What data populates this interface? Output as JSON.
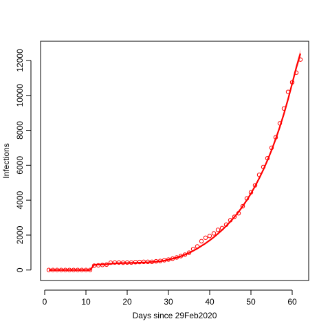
{
  "chart_data": {
    "type": "scatter",
    "title": "",
    "xlabel": "Days since 29Feb2020",
    "ylabel": "Infections",
    "xlim": [
      -1,
      64
    ],
    "ylim": [
      -600,
      13100
    ],
    "x_ticks": [
      0,
      10,
      20,
      30,
      40,
      50,
      60
    ],
    "x_tick_labels": [
      "0",
      "10",
      "20",
      "30",
      "40",
      "50",
      "60"
    ],
    "y_ticks": [
      0,
      2000,
      4000,
      6000,
      8000,
      10000,
      12000
    ],
    "y_tick_labels": [
      "0",
      "2000",
      "4000",
      "6000",
      "8000",
      "10000",
      "12000"
    ],
    "grid": false,
    "colors": {
      "points": "#ff0000",
      "fit": "#ff0000",
      "band": "#ffb0b0"
    },
    "series": [
      {
        "kind": "points",
        "marker": "open-circle",
        "x": [
          1,
          2,
          3,
          4,
          5,
          6,
          7,
          8,
          9,
          10,
          11,
          12,
          13,
          14,
          15,
          16,
          17,
          18,
          19,
          20,
          21,
          22,
          23,
          24,
          25,
          26,
          27,
          28,
          29,
          30,
          31,
          32,
          33,
          34,
          35,
          36,
          37,
          38,
          39,
          40,
          41,
          42,
          43,
          44,
          45,
          46,
          47,
          48,
          49,
          50,
          51,
          52,
          53,
          54,
          55,
          56,
          57,
          58,
          59,
          60,
          61,
          62
        ],
        "y": [
          0,
          0,
          0,
          0,
          0,
          0,
          0,
          0,
          0,
          0,
          0,
          250,
          270,
          290,
          310,
          420,
          430,
          430,
          420,
          430,
          430,
          450,
          460,
          470,
          470,
          470,
          500,
          520,
          560,
          600,
          650,
          720,
          800,
          880,
          990,
          1200,
          1350,
          1650,
          1850,
          1950,
          2100,
          2300,
          2400,
          2600,
          2850,
          3050,
          3250,
          3650,
          4100,
          4450,
          4850,
          5450,
          5900,
          6400,
          7000,
          7600,
          8400,
          9250,
          10200,
          10750,
          11300,
          12050
        ]
      },
      {
        "kind": "fit",
        "x": [
          1,
          2,
          3,
          4,
          5,
          6,
          7,
          8,
          9,
          10,
          11,
          12,
          13,
          14,
          15,
          16,
          17,
          18,
          19,
          20,
          21,
          22,
          23,
          24,
          25,
          26,
          27,
          28,
          29,
          30,
          31,
          32,
          33,
          34,
          35,
          36,
          37,
          38,
          39,
          40,
          41,
          42,
          43,
          44,
          45,
          46,
          47,
          48,
          49,
          50,
          51,
          52,
          53,
          54,
          55,
          56,
          57,
          58,
          59,
          60,
          61,
          62
        ],
        "y": [
          0,
          0,
          0,
          0,
          0,
          0,
          0,
          0,
          0,
          0,
          0,
          300,
          310,
          320,
          330,
          360,
          380,
          390,
          400,
          400,
          410,
          410,
          420,
          430,
          440,
          460,
          480,
          500,
          540,
          590,
          650,
          710,
          790,
          880,
          980,
          1100,
          1230,
          1380,
          1530,
          1700,
          1880,
          2080,
          2290,
          2520,
          2770,
          3040,
          3330,
          3650,
          4000,
          4380,
          4800,
          5250,
          5740,
          6280,
          6860,
          7500,
          8190,
          8950,
          9780,
          10680,
          11600,
          12400
        ],
        "band_halfwidth": [
          0,
          0,
          0,
          0,
          0,
          0,
          0,
          0,
          0,
          0,
          0,
          40,
          40,
          40,
          40,
          40,
          40,
          40,
          40,
          40,
          40,
          40,
          40,
          40,
          40,
          40,
          40,
          40,
          40,
          40,
          40,
          40,
          40,
          40,
          40,
          40,
          40,
          40,
          40,
          40,
          40,
          40,
          50,
          50,
          50,
          50,
          60,
          60,
          60,
          70,
          70,
          80,
          80,
          90,
          90,
          100,
          110,
          120,
          130,
          140,
          160,
          250
        ]
      }
    ]
  }
}
